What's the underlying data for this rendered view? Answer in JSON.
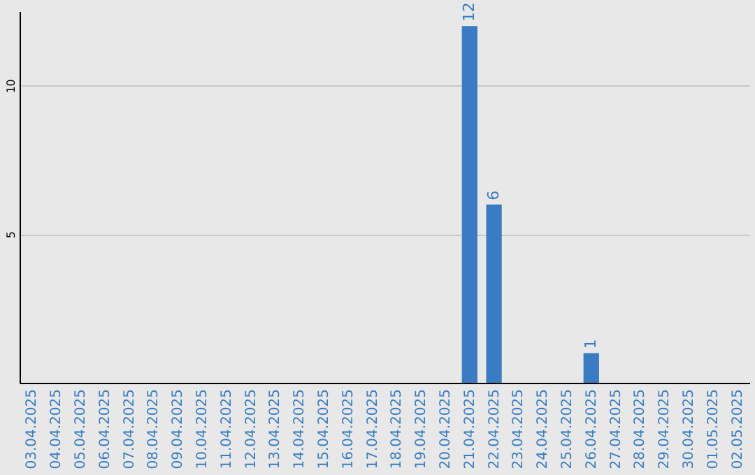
{
  "chart_data": {
    "type": "bar",
    "categories": [
      "03.04.2025",
      "04.04.2025",
      "05.04.2025",
      "06.04.2025",
      "07.04.2025",
      "08.04.2025",
      "09.04.2025",
      "10.04.2025",
      "11.04.2025",
      "12.04.2025",
      "13.04.2025",
      "14.04.2025",
      "15.04.2025",
      "16.04.2025",
      "17.04.2025",
      "18.04.2025",
      "19.04.2025",
      "20.04.2025",
      "21.04.2025",
      "22.04.2025",
      "23.04.2025",
      "24.04.2025",
      "25.04.2025",
      "26.04.2025",
      "27.04.2025",
      "28.04.2025",
      "29.04.2025",
      "30.04.2025",
      "01.05.2025",
      "02.05.2025"
    ],
    "values": [
      0,
      0,
      0,
      0,
      0,
      0,
      0,
      0,
      0,
      0,
      0,
      0,
      0,
      0,
      0,
      0,
      0,
      0,
      12,
      6,
      0,
      0,
      0,
      1,
      0,
      0,
      0,
      0,
      0,
      0
    ],
    "value_labels": [
      null,
      null,
      null,
      null,
      null,
      null,
      null,
      null,
      null,
      null,
      null,
      null,
      null,
      null,
      null,
      null,
      null,
      null,
      "12",
      "6",
      null,
      null,
      null,
      "1",
      null,
      null,
      null,
      null,
      null,
      null
    ],
    "color": "#3a7cc4",
    "ylim": [
      0,
      12.5
    ],
    "yticks": [
      5,
      10
    ],
    "grid": "y"
  }
}
